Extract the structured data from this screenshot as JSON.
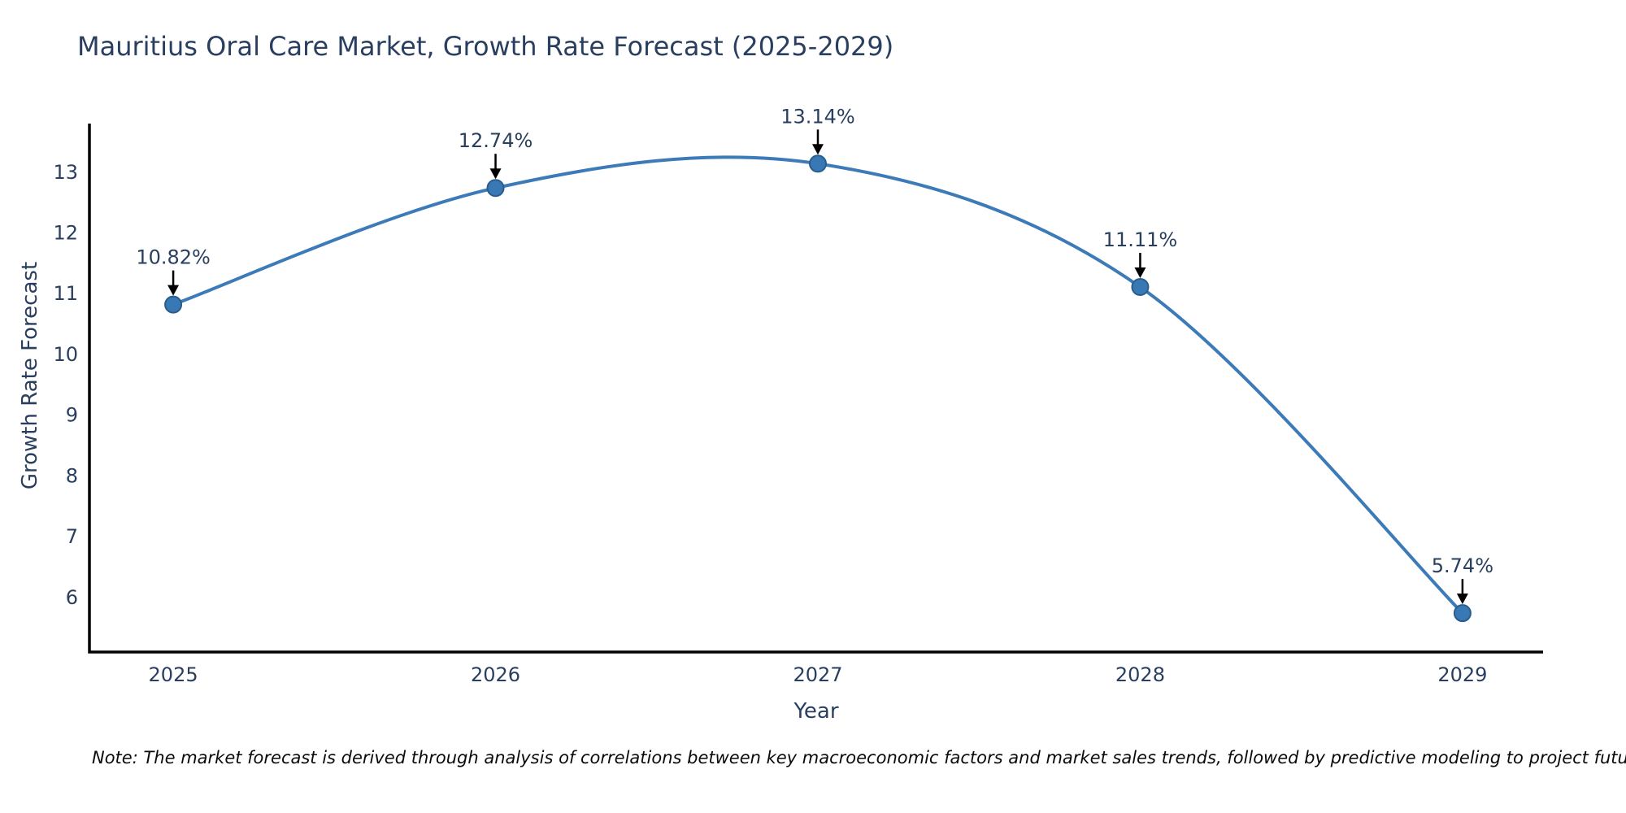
{
  "note": "Note: The market forecast is derived through analysis of correlations between key macroeconomic factors and market sales trends, followed by predictive modeling to project future sales.",
  "chart_data": {
    "type": "line",
    "title": "Mauritius Oral Care Market, Growth Rate Forecast (2025-2029)",
    "xlabel": "Year",
    "ylabel": "Growth Rate Forecast",
    "x": [
      2025,
      2026,
      2027,
      2028,
      2029
    ],
    "values": [
      10.82,
      12.74,
      13.14,
      11.11,
      5.74
    ],
    "point_labels": [
      "10.82%",
      "12.74%",
      "13.14%",
      "11.11%",
      "5.74%"
    ],
    "yticks": [
      6,
      7,
      8,
      9,
      10,
      11,
      12,
      13
    ],
    "xlim": [
      2024.74,
      2029.25
    ],
    "ylim": [
      5.1,
      13.8
    ],
    "grid": false,
    "legend": "none",
    "line_color": "#3c7ab8",
    "marker_color": "#3878b4",
    "marker_edge_color": "#2a5d8c",
    "annotation_arrow_color": "#000000",
    "axis_color": "#000000",
    "text_color": "#2a3f5f"
  }
}
